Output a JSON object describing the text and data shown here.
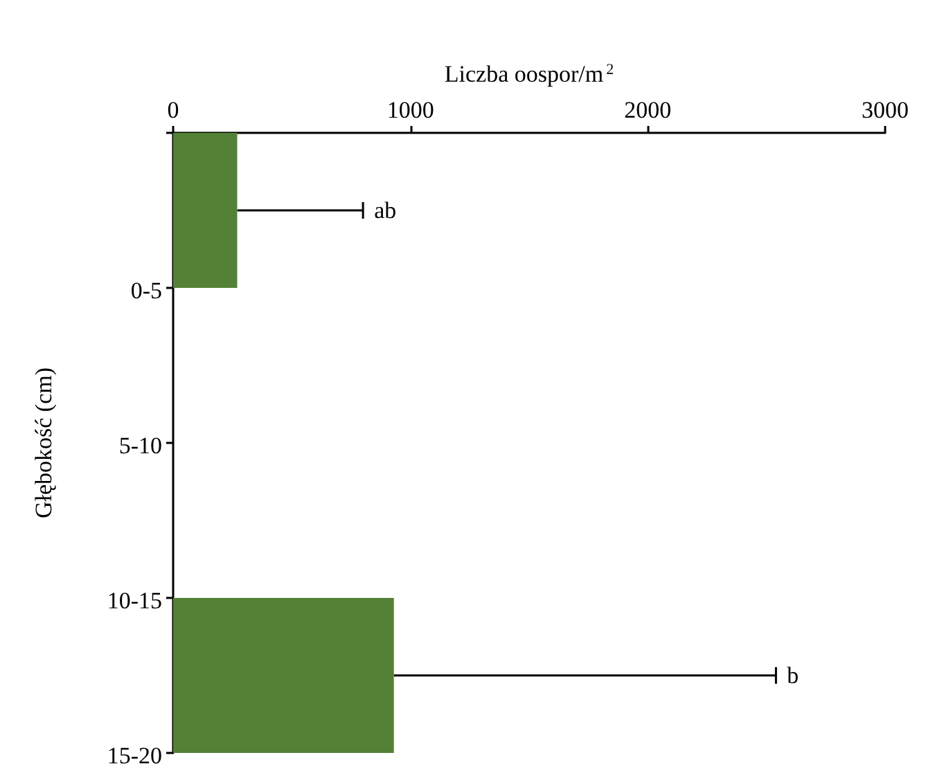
{
  "chart_data": {
    "type": "bar",
    "orientation": "horizontal",
    "xlabel": "Liczba oospor/m$^{2}$",
    "ylabel": "Głębokość (cm)",
    "categories": [
      "0-5",
      "5-10",
      "10-15",
      "15-20"
    ],
    "values": [
      270,
      0,
      0,
      930
    ],
    "errors": [
      [
        270,
        800
      ],
      null,
      null,
      [
        930,
        2540
      ]
    ],
    "color": "#538135",
    "xlim": [
      0,
      3000
    ],
    "xticks": [
      0,
      1000,
      2000,
      3000
    ],
    "grid": false,
    "annotations": [
      "ab",
      "b"
    ]
  }
}
